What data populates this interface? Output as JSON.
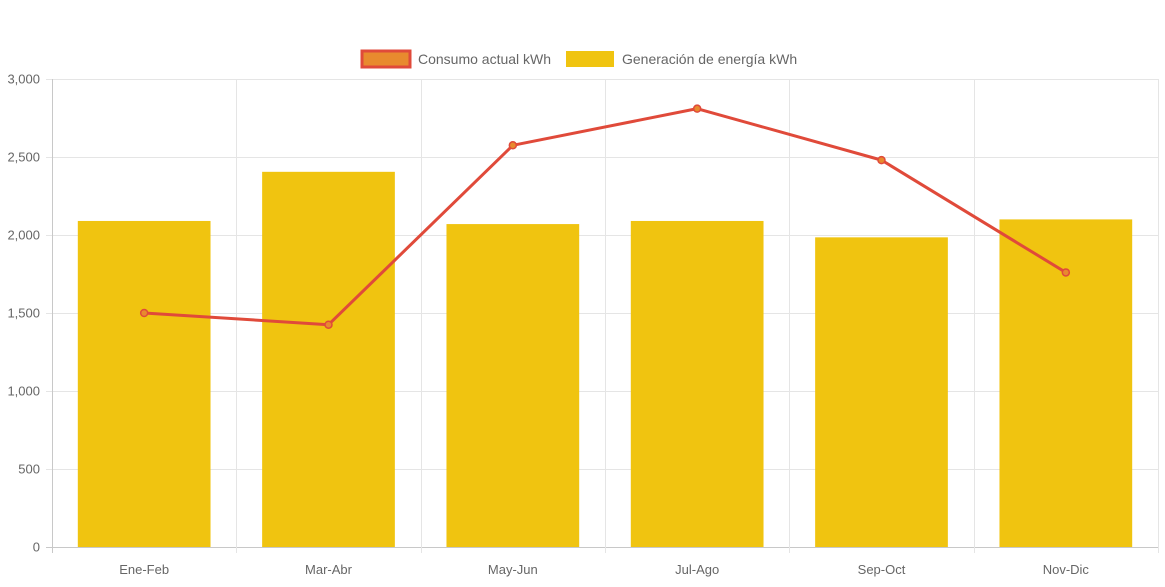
{
  "chart_data": {
    "type": "bar",
    "categories": [
      "Ene-Feb",
      "Mar-Abr",
      "May-Jun",
      "Jul-Ago",
      "Sep-Oct",
      "Nov-Dic"
    ],
    "series": [
      {
        "name": "Consumo actual kWh",
        "type": "line",
        "values": [
          1500,
          1425,
          2575,
          2810,
          2480,
          1760
        ],
        "color": "#e04a3a",
        "legend_fill": "#e88a2e"
      },
      {
        "name": "Generación de energía kWh",
        "type": "bar",
        "values": [
          2090,
          2405,
          2070,
          2090,
          1985,
          2100
        ],
        "color": "#f0c410"
      }
    ],
    "title": "",
    "xlabel": "",
    "ylabel": "",
    "ylim": [
      0,
      3000
    ],
    "yticks": [
      0,
      500,
      1000,
      1500,
      2000,
      2500,
      3000
    ],
    "ytick_labels": [
      "0",
      "500",
      "1,000",
      "1,500",
      "2,000",
      "2,500",
      "3,000"
    ],
    "grid": true,
    "legend_position": "top-center"
  }
}
